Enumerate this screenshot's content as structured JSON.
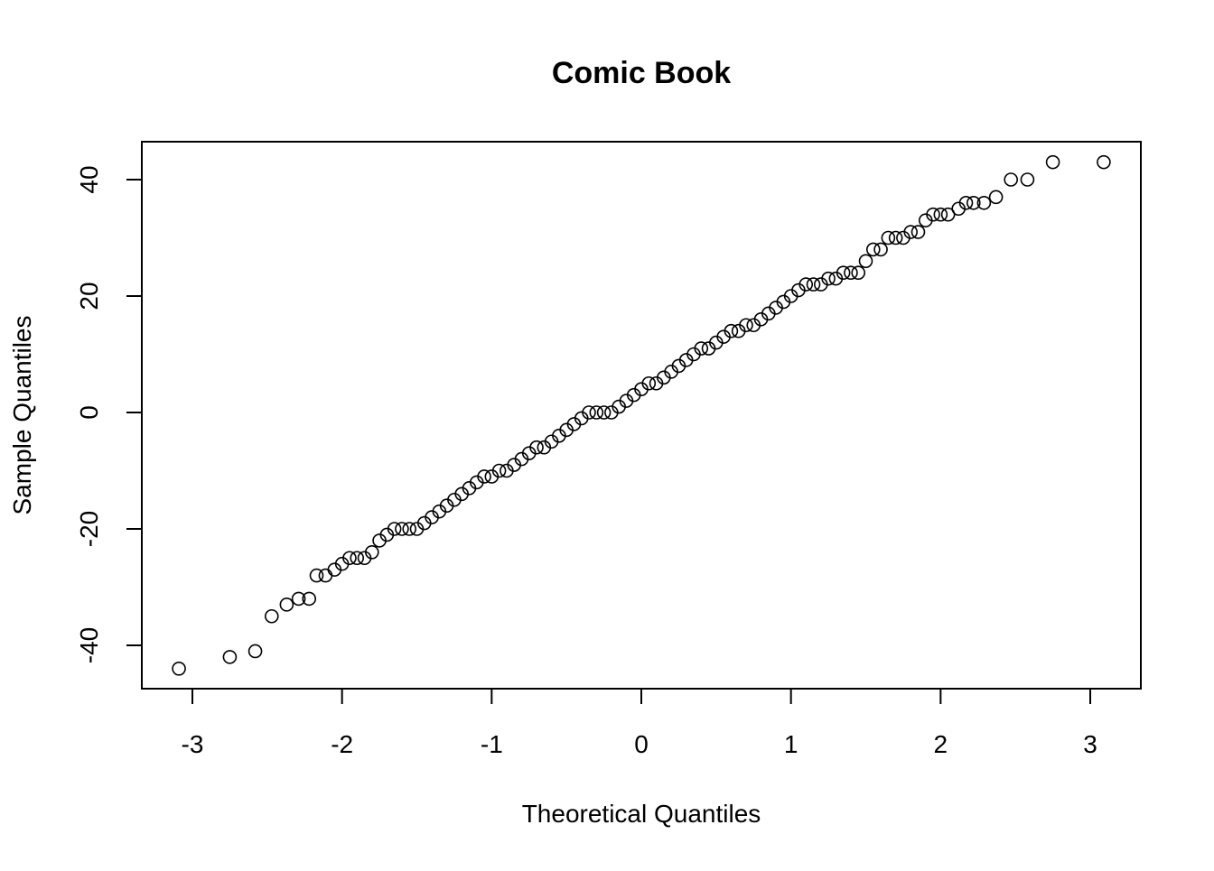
{
  "chart_data": {
    "type": "scatter",
    "title": "Comic Book",
    "x_label": "Theoretical Quantiles",
    "y_label": "Sample Quantiles",
    "x": [
      -3.09,
      -2.75,
      -2.58,
      -2.47,
      -2.37,
      -2.29,
      -2.22,
      -2.17,
      -2.11,
      -2.05,
      -2.0,
      -1.95,
      -1.9,
      -1.85,
      -1.8,
      -1.75,
      -1.7,
      -1.65,
      -1.6,
      -1.55,
      -1.5,
      -1.45,
      -1.4,
      -1.35,
      -1.3,
      -1.25,
      -1.2,
      -1.15,
      -1.1,
      -1.05,
      -1.0,
      -0.95,
      -0.9,
      -0.85,
      -0.8,
      -0.75,
      -0.7,
      -0.65,
      -0.6,
      -0.55,
      -0.5,
      -0.45,
      -0.4,
      -0.35,
      -0.3,
      -0.25,
      -0.2,
      -0.15,
      -0.1,
      -0.05,
      0,
      0.05,
      0.1,
      0.15,
      0.2,
      0.25,
      0.3,
      0.35,
      0.4,
      0.45,
      0.5,
      0.55,
      0.6,
      0.65,
      0.7,
      0.75,
      0.8,
      0.85,
      0.9,
      0.95,
      1.0,
      1.05,
      1.1,
      1.15,
      1.2,
      1.25,
      1.3,
      1.35,
      1.4,
      1.45,
      1.5,
      1.55,
      1.6,
      1.65,
      1.7,
      1.75,
      1.8,
      1.85,
      1.9,
      1.95,
      2.0,
      2.05,
      2.12,
      2.17,
      2.22,
      2.29,
      2.37,
      2.47,
      2.58,
      2.75,
      3.09
    ],
    "values": [
      -44,
      -42,
      -41,
      -35,
      -33,
      -32,
      -32,
      -28,
      -28,
      -27,
      -26,
      -25,
      -25,
      -25,
      -24,
      -22,
      -21,
      -20,
      -20,
      -20,
      -20,
      -19,
      -18,
      -17,
      -16,
      -15,
      -14,
      -13,
      -12,
      -11,
      -11,
      -10,
      -10,
      -9,
      -8,
      -7,
      -6,
      -6,
      -5,
      -4,
      -3,
      -2,
      -1,
      0,
      0,
      0,
      0,
      1,
      2,
      3,
      4,
      5,
      5,
      6,
      7,
      8,
      9,
      10,
      11,
      11,
      12,
      13,
      14,
      14,
      15,
      15,
      16,
      17,
      18,
      19,
      20,
      21,
      22,
      22,
      22,
      23,
      23,
      24,
      24,
      24,
      26,
      28,
      28,
      30,
      30,
      30,
      31,
      31,
      33,
      34,
      34,
      34,
      35,
      36,
      36,
      36,
      37,
      40,
      40,
      43,
      43
    ],
    "color": "#000000",
    "xlim": [
      -3.338,
      3.338
    ],
    "xticks": [
      -3,
      -2,
      -1,
      0,
      1,
      2,
      3
    ],
    "ylim": [
      -47.44,
      46.51
    ],
    "yticks": [
      -40,
      -20,
      0,
      20,
      40
    ]
  }
}
